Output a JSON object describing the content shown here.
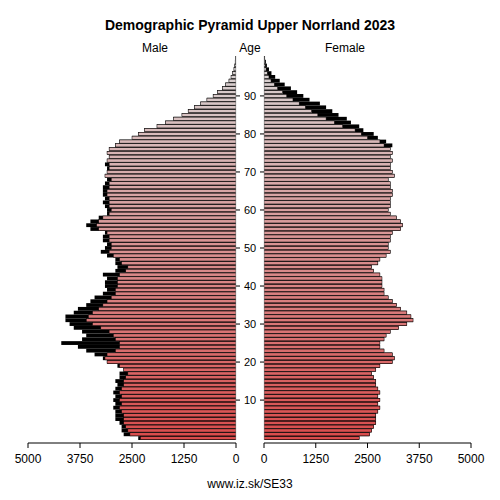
{
  "chart_data": {
    "type": "pyramid",
    "title": "Demographic Pyramid Upper Norrland 2023",
    "orientation": "horizontal",
    "ylabel": "Age",
    "categories": [
      0,
      1,
      2,
      3,
      4,
      5,
      6,
      7,
      8,
      9,
      10,
      11,
      12,
      13,
      14,
      15,
      16,
      17,
      18,
      19,
      20,
      21,
      22,
      23,
      24,
      25,
      26,
      27,
      28,
      29,
      30,
      31,
      32,
      33,
      34,
      35,
      36,
      37,
      38,
      39,
      40,
      41,
      42,
      43,
      44,
      45,
      46,
      47,
      48,
      49,
      50,
      51,
      52,
      53,
      54,
      55,
      56,
      57,
      58,
      59,
      60,
      61,
      62,
      63,
      64,
      65,
      66,
      67,
      68,
      69,
      70,
      71,
      72,
      73,
      74,
      75,
      76,
      77,
      78,
      79,
      80,
      81,
      82,
      83,
      84,
      85,
      86,
      87,
      88,
      89,
      90,
      91,
      92,
      93,
      94,
      95,
      96,
      97,
      98,
      99,
      100
    ],
    "series": [
      {
        "name": "Male",
        "color": "#d94c4c",
        "values": [
          2350,
          2700,
          2750,
          2750,
          2800,
          2900,
          2900,
          2900,
          2950,
          2900,
          2950,
          2900,
          2950,
          2900,
          2850,
          2900,
          2800,
          2800,
          2700,
          2850,
          3100,
          3200,
          3400,
          3600,
          3800,
          4200,
          3700,
          3600,
          3700,
          3900,
          4000,
          4100,
          4100,
          3900,
          3800,
          3600,
          3500,
          3400,
          3200,
          3100,
          3150,
          3150,
          3100,
          3200,
          2900,
          2850,
          2900,
          2900,
          3100,
          3250,
          3150,
          3100,
          3200,
          3200,
          3150,
          3500,
          3600,
          3500,
          3300,
          3100,
          3100,
          3150,
          3200,
          3150,
          3200,
          3200,
          3200,
          3150,
          3100,
          3150,
          3100,
          3100,
          3150,
          3100,
          3050,
          3100,
          3050,
          2900,
          2800,
          2500,
          2350,
          2200,
          1900,
          1700,
          1500,
          1300,
          1150,
          1000,
          850,
          700,
          550,
          450,
          330,
          250,
          170,
          120,
          80,
          50,
          30,
          20,
          10
        ]
      },
      {
        "name": "Female",
        "color": "#d94c4c",
        "values": [
          2300,
          2550,
          2600,
          2650,
          2700,
          2700,
          2700,
          2750,
          2800,
          2750,
          2800,
          2750,
          2800,
          2750,
          2700,
          2700,
          2650,
          2600,
          2700,
          2800,
          3100,
          3150,
          3100,
          2900,
          2800,
          2800,
          2900,
          2950,
          3050,
          3250,
          3450,
          3600,
          3550,
          3450,
          3300,
          3200,
          3100,
          3000,
          2900,
          2900,
          2850,
          2850,
          2850,
          2800,
          2650,
          2600,
          2750,
          2800,
          2950,
          3050,
          3000,
          3000,
          3050,
          3050,
          3100,
          3300,
          3350,
          3300,
          3200,
          3050,
          3000,
          3050,
          3050,
          3050,
          3100,
          3100,
          3050,
          3050,
          3000,
          3150,
          3100,
          3050,
          3050,
          3100,
          3050,
          3100,
          3050,
          3100,
          2950,
          2750,
          2650,
          2400,
          2300,
          2100,
          2000,
          1800,
          1650,
          1500,
          1350,
          1100,
          950,
          800,
          650,
          500,
          380,
          270,
          180,
          120,
          70,
          45,
          25
        ]
      }
    ],
    "xlim": [
      0,
      5000
    ],
    "xticks": [
      0,
      1250,
      2500,
      3750,
      5000
    ],
    "ylim": [
      0,
      101
    ],
    "yticks": [
      10,
      20,
      30,
      40,
      50,
      60,
      70,
      80,
      90
    ],
    "annotations": [
      "www.iz.sk/SE33"
    ]
  }
}
